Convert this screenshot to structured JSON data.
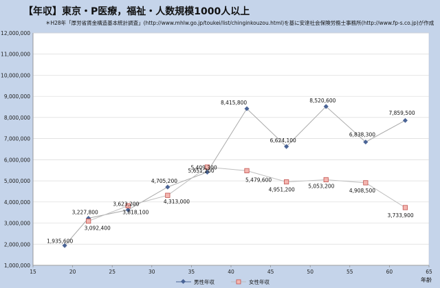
{
  "chart_data": {
    "type": "line",
    "title": "【年収】東京・P医療，福祉・人数規模1000人以上",
    "subtitle": "＊H28年「厚労省賃金構造基本統計調査」(http://www.mhlw.go.jp/toukei/list/chinginkouzou.html)を基に安達社会保険労務士事務所(http://www.fp-s.co.jp)が作成",
    "xlabel": "年齢",
    "ylabel": "",
    "xlim": [
      15,
      65
    ],
    "ylim": [
      1000000,
      12000000
    ],
    "xticks": [
      15,
      20,
      25,
      30,
      35,
      40,
      45,
      50,
      55,
      60,
      65
    ],
    "yticks": [
      1000000,
      2000000,
      3000000,
      4000000,
      5000000,
      6000000,
      7000000,
      8000000,
      9000000,
      10000000,
      11000000,
      12000000
    ],
    "ytick_labels": [
      "1,000,000",
      "2,000,000",
      "3,000,000",
      "4,000,000",
      "5,000,000",
      "6,000,000",
      "7,000,000",
      "8,000,000",
      "9,000,000",
      "10,000,000",
      "11,000,000",
      "12,000,000"
    ],
    "grid": true,
    "legend_position": "bottom",
    "series": [
      {
        "name": "男性年収",
        "color": "#4a6496",
        "marker": "diamond",
        "x": [
          19,
          22,
          27,
          32,
          37,
          42,
          47,
          52,
          57,
          62
        ],
        "y": [
          1935600,
          3227800,
          3623200,
          4705200,
          5409300,
          8415800,
          6624100,
          8520600,
          6838300,
          7859500
        ],
        "labels": [
          "1,935,600",
          "3,227,800",
          "3,623,200",
          "4,705,200",
          "5,409,300",
          "8,415,800",
          "6,624,100",
          "8,520,600",
          "6,838,300",
          "7,859,500"
        ]
      },
      {
        "name": "女性年収",
        "color": "#c0504d",
        "marker": "square",
        "x": [
          22,
          27,
          32,
          37,
          42,
          47,
          52,
          57,
          62
        ],
        "y": [
          3092400,
          3818100,
          4313000,
          5651200,
          5479600,
          4951200,
          5053200,
          4908500,
          3733900
        ],
        "labels": [
          "3,092,400",
          "3,818,100",
          "4,313,000",
          "5,651,200",
          "5,479,600",
          "4,951,200",
          "5,053,200",
          "4,908,500",
          "3,733,900"
        ]
      }
    ]
  }
}
